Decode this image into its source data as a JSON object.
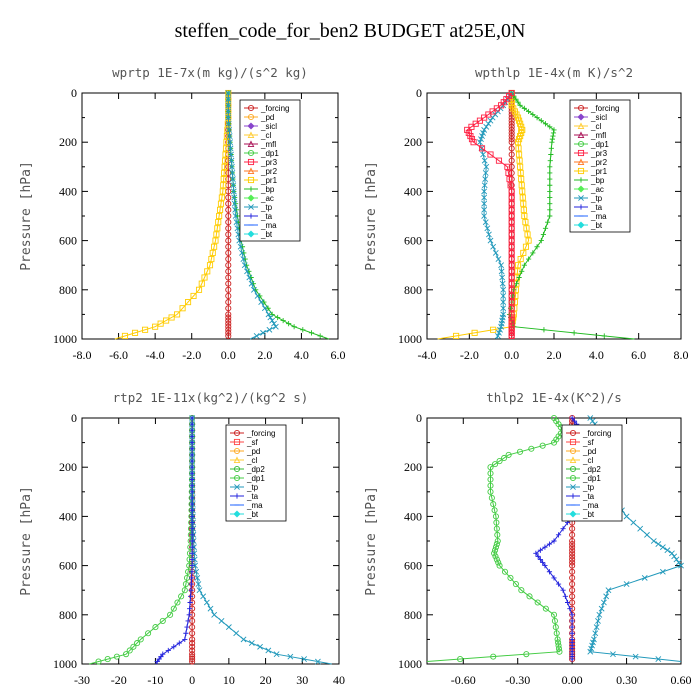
{
  "title": "steffen_code_for_ben2  BUDGET at25E,0N",
  "colors": {
    "_forcing": "#cc2222",
    "_sf": "#ff4444",
    "_pd": "#ffaa22",
    "_sicl": "#8844cc",
    "_cl": "#ffcc33",
    "_mfl": "#aa1155",
    "_dp1": "#44cc44",
    "_dp2": "#33bb33",
    "_pr3": "#ff2244",
    "_pr2": "#ff7722",
    "_pr1": "#ffcc00",
    "_bp": "#22bb22",
    "_ac": "#55ee55",
    "_tp": "#2299bb",
    "_ta": "#2222dd",
    "_ma": "#2266ff",
    "_bt": "#22dddd"
  },
  "chart_data": [
    {
      "type": "line",
      "title": "wprtp  1E-7x(m kg)/(s^2 kg)",
      "ylabel": "Pressure [hPa]",
      "xlim": [
        -8,
        6
      ],
      "ylim": [
        1000,
        0
      ],
      "xticks": [
        "-8.0",
        "-6.0",
        "-4.0",
        "-2.0",
        "0.0",
        "2.0",
        "4.0",
        "6.0"
      ],
      "yticks": [
        "0",
        "200",
        "400",
        "600",
        "800",
        "1000"
      ],
      "legend": [
        "_forcing",
        "_pd",
        "_sicl",
        "_cl",
        "_mfl",
        "_dp1",
        "_pr3",
        "_pr2",
        "_pr1",
        "_bp",
        "_ac",
        "_tp",
        "_ta",
        "_ma",
        "_bt"
      ],
      "y": [
        0,
        100,
        200,
        300,
        400,
        500,
        600,
        700,
        800,
        900,
        950,
        1000
      ],
      "series": [
        {
          "name": "_forcing",
          "x": [
            0,
            0,
            0,
            0,
            0,
            0,
            0,
            0,
            0,
            0,
            0,
            0
          ]
        },
        {
          "name": "_pr1",
          "x": [
            0,
            0,
            -0.1,
            -0.2,
            -0.3,
            -0.5,
            -0.7,
            -1.0,
            -1.6,
            -2.8,
            -4.0,
            -6.2
          ]
        },
        {
          "name": "_bp",
          "x": [
            0,
            0,
            0.1,
            0.2,
            0.3,
            0.5,
            0.7,
            1.0,
            1.5,
            2.4,
            3.6,
            5.5
          ]
        },
        {
          "name": "_tp",
          "x": [
            0,
            0,
            0.1,
            0.2,
            0.3,
            0.4,
            0.6,
            0.9,
            1.4,
            2.2,
            2.6,
            1.2
          ]
        }
      ]
    },
    {
      "type": "line",
      "title": "wpthlp  1E-4x(m K)/s^2",
      "ylabel": "Pressure [hPa]",
      "xlim": [
        -4,
        8
      ],
      "ylim": [
        1000,
        0
      ],
      "xticks": [
        "-4.0",
        "-2.0",
        "0.0",
        "2.0",
        "4.0",
        "6.0",
        "8.0"
      ],
      "yticks": [
        "0",
        "200",
        "400",
        "600",
        "800",
        "1000"
      ],
      "legend": [
        "_forcing",
        "_sicl",
        "_cl",
        "_mfl",
        "_dp1",
        "_pr3",
        "_pr2",
        "_pr1",
        "_bp",
        "_ac",
        "_tp",
        "_ta",
        "_ma",
        "_bt"
      ],
      "y": [
        0,
        50,
        100,
        150,
        200,
        300,
        400,
        500,
        600,
        700,
        800,
        900,
        950,
        1000
      ],
      "series": [
        {
          "name": "_forcing",
          "x": [
            0,
            0,
            0,
            0,
            0,
            0,
            0,
            0,
            0,
            0,
            0,
            0,
            0,
            0
          ]
        },
        {
          "name": "_pr1",
          "x": [
            0,
            0,
            0.3,
            0.5,
            0.3,
            0.4,
            0.5,
            0.6,
            0.8,
            0.3,
            0.2,
            0.1,
            0,
            -3.5
          ]
        },
        {
          "name": "_bp",
          "x": [
            0,
            0.4,
            1.2,
            2.0,
            1.9,
            1.8,
            1.8,
            1.8,
            1.4,
            0.6,
            0.1,
            -0.1,
            0.1,
            5.8
          ]
        },
        {
          "name": "_tp",
          "x": [
            0,
            -0.4,
            -0.9,
            -1.3,
            -1.5,
            -1.2,
            -1.3,
            -1.3,
            -1.0,
            -0.5,
            -0.4,
            -0.4,
            -0.5,
            -0.7
          ]
        },
        {
          "name": "_pr3",
          "x": [
            0,
            -0.5,
            -1.3,
            -2.1,
            -1.8,
            -0.2,
            0,
            0,
            0,
            0,
            0,
            0,
            0,
            0
          ]
        }
      ]
    },
    {
      "type": "line",
      "title": "rtp2  1E-11x(kg^2)/(kg^2 s)",
      "ylabel": "Pressure [hPa]",
      "xlim": [
        -30,
        40
      ],
      "ylim": [
        1000,
        0
      ],
      "xticks": [
        "-30",
        "-20",
        "-10",
        "0",
        "10",
        "20",
        "30",
        "40"
      ],
      "yticks": [
        "0",
        "200",
        "400",
        "600",
        "800",
        "1000"
      ],
      "legend": [
        "_forcing",
        "_sf",
        "_pd",
        "_cl",
        "_dp2",
        "_dp1",
        "_tp",
        "_ta",
        "_ma",
        "_bt"
      ],
      "y": [
        0,
        100,
        200,
        300,
        400,
        500,
        600,
        700,
        800,
        900,
        960,
        1000
      ],
      "series": [
        {
          "name": "_forcing",
          "x": [
            0,
            0,
            0,
            0,
            0,
            0,
            0,
            0,
            0,
            0,
            0,
            0
          ]
        },
        {
          "name": "_dp1",
          "x": [
            0,
            0,
            0,
            -0.1,
            -0.2,
            -0.4,
            -0.8,
            -2.0,
            -6.0,
            -14.0,
            -18.0,
            -28.0
          ]
        },
        {
          "name": "_tp",
          "x": [
            0,
            0,
            0,
            0.1,
            0.2,
            0.4,
            0.8,
            2.0,
            6.0,
            14.0,
            23.0,
            38.0
          ]
        },
        {
          "name": "_ta",
          "x": [
            0,
            0,
            0,
            0,
            0,
            0,
            0,
            -0.3,
            -0.8,
            -2.0,
            -8.0,
            -10.0
          ]
        }
      ]
    },
    {
      "type": "line",
      "title": "thlp2  1E-4x(K^2)/s",
      "ylabel": "Pressure [hPa]",
      "xlim": [
        -0.8,
        0.6
      ],
      "ylim": [
        1000,
        0
      ],
      "xticks": [
        "-0.60",
        "-0.30",
        "0.00",
        "0.30",
        "0.60"
      ],
      "yticks": [
        "0",
        "200",
        "400",
        "600",
        "800",
        "1000"
      ],
      "legend": [
        "_forcing",
        "_sf",
        "_pd",
        "_cl",
        "_dp2",
        "_dp1",
        "_tp",
        "_ta",
        "_ma",
        "_bt"
      ],
      "y": [
        0,
        50,
        100,
        150,
        200,
        300,
        400,
        500,
        550,
        600,
        700,
        800,
        900,
        950,
        990
      ],
      "series": [
        {
          "name": "_forcing",
          "x": [
            0,
            0,
            0,
            0,
            0,
            0,
            0,
            0,
            0,
            0,
            0,
            0,
            0,
            0,
            0
          ]
        },
        {
          "name": "_dp1",
          "x": [
            -0.1,
            -0.05,
            -0.1,
            -0.35,
            -0.45,
            -0.45,
            -0.42,
            -0.41,
            -0.43,
            -0.4,
            -0.28,
            -0.1,
            -0.08,
            -0.07,
            -0.8
          ]
        },
        {
          "name": "_tp",
          "x": [
            0.1,
            0.15,
            0.1,
            0.2,
            0.15,
            0.2,
            0.3,
            0.45,
            0.55,
            0.6,
            0.2,
            0.15,
            0.12,
            0.1,
            0.6
          ]
        },
        {
          "name": "_ta",
          "x": [
            0,
            0.05,
            0.1,
            0.15,
            0.1,
            0.05,
            0,
            -0.1,
            -0.2,
            -0.15,
            -0.05,
            0,
            0,
            0,
            0
          ]
        }
      ]
    }
  ]
}
